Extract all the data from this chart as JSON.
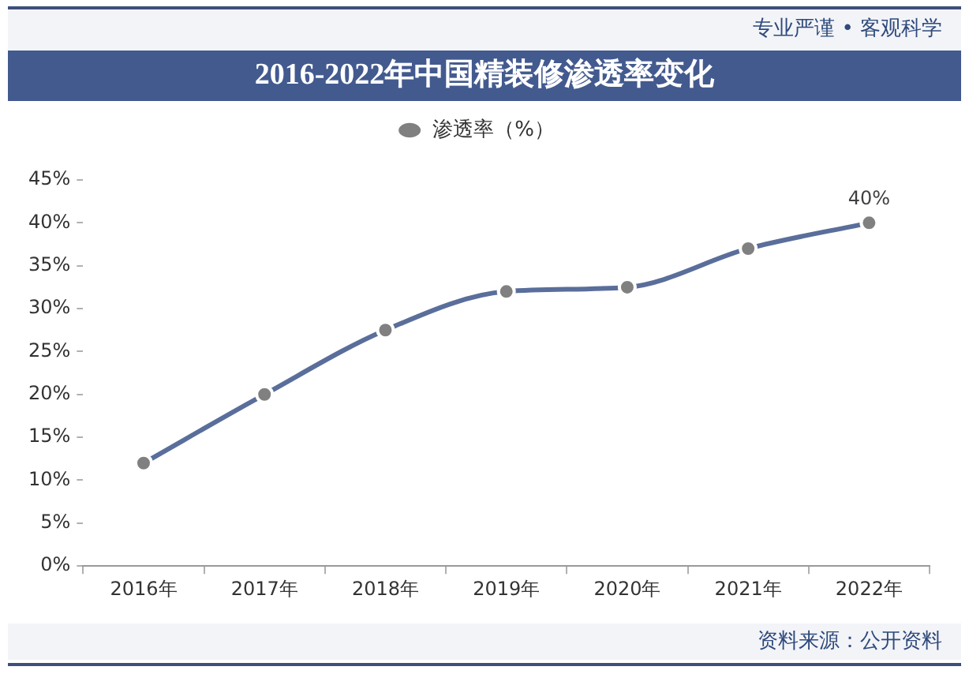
{
  "chart_data": {
    "type": "line",
    "title": "2016-2022年中国精装修渗透率变化",
    "categories": [
      "2016年",
      "2017年",
      "2018年",
      "2019年",
      "2020年",
      "2021年",
      "2022年"
    ],
    "series": [
      {
        "name": "渗透率（%）",
        "color": "#5a6e9b",
        "values": [
          12,
          20,
          27.5,
          32,
          32.5,
          37,
          40
        ],
        "value_labels": [
          null,
          null,
          null,
          null,
          null,
          null,
          "40%"
        ]
      }
    ],
    "ylim": [
      0,
      45
    ],
    "yticks": [
      {
        "value": 0,
        "label": "0%"
      },
      {
        "value": 5,
        "label": "5%"
      },
      {
        "value": 10,
        "label": "10%"
      },
      {
        "value": 15,
        "label": "15%"
      },
      {
        "value": 20,
        "label": "20%"
      },
      {
        "value": 25,
        "label": "25%"
      },
      {
        "value": 30,
        "label": "30%"
      },
      {
        "value": 35,
        "label": "35%"
      },
      {
        "value": 40,
        "label": "40%"
      },
      {
        "value": 45,
        "label": "45%"
      }
    ],
    "grid": false,
    "legend": "top",
    "marker": "circle",
    "line_style": "solid",
    "annotations": [
      "专业严谨 • 客观科学",
      "资料来源：公开资料"
    ]
  }
}
